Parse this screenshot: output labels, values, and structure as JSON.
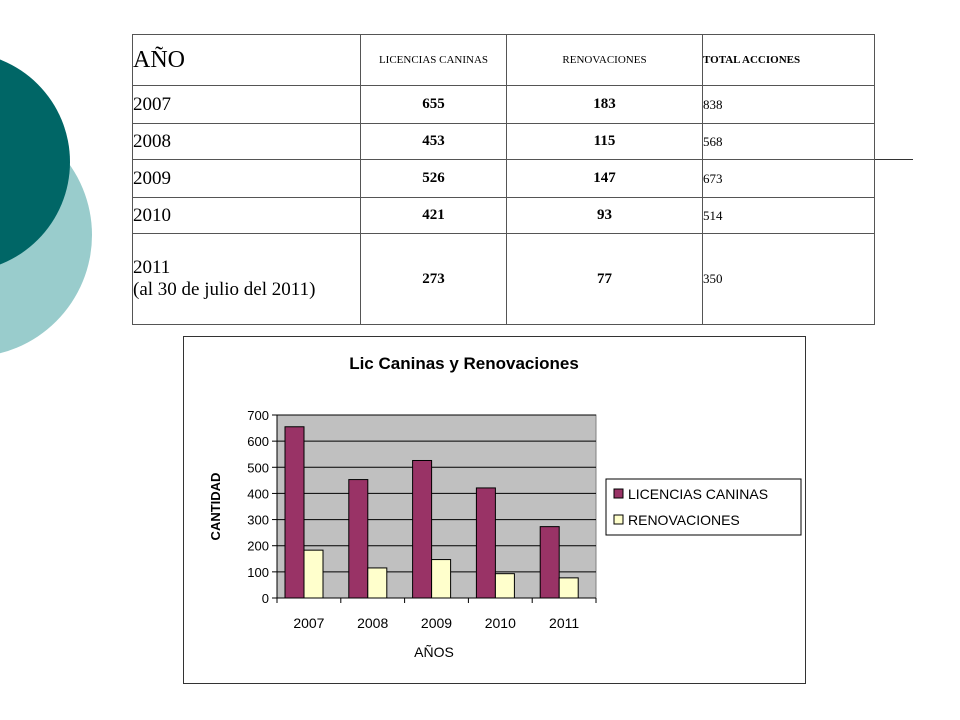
{
  "table": {
    "headers": {
      "year": "AÑO",
      "licencias": "LICENCIAS CANINAS",
      "renovaciones": "RENOVACIONES",
      "total": "TOTAL ACCIONES"
    },
    "rows": [
      {
        "year": "2007",
        "year_note": "",
        "licencias": "655",
        "renovaciones": "183",
        "total": "838"
      },
      {
        "year": "2008",
        "year_note": "",
        "licencias": "453",
        "renovaciones": "115",
        "total": "568"
      },
      {
        "year": "2009",
        "year_note": "",
        "licencias": "526",
        "renovaciones": "147",
        "total": "673"
      },
      {
        "year": "2010",
        "year_note": "",
        "licencias": "421",
        "renovaciones": "93",
        "total": "514"
      },
      {
        "year": "2011",
        "year_note": "(al 30 de julio del 2011)",
        "licencias": "273",
        "renovaciones": "77",
        "total": "350"
      }
    ]
  },
  "chart_data": {
    "type": "bar",
    "title": "Lic Caninas y Renovaciones",
    "xlabel": "AÑOS",
    "ylabel": "CANTIDAD",
    "categories": [
      "2007",
      "2008",
      "2009",
      "2010",
      "2011"
    ],
    "series": [
      {
        "name": "LICENCIAS CANINAS",
        "values": [
          655,
          453,
          526,
          421,
          273
        ],
        "color": "#993366"
      },
      {
        "name": "RENOVACIONES",
        "values": [
          183,
          115,
          147,
          93,
          77
        ],
        "color": "#ffffcc"
      }
    ],
    "ylim": [
      0,
      700
    ],
    "yticks": [
      0,
      100,
      200,
      300,
      400,
      500,
      600,
      700
    ],
    "grid": true,
    "plot_background": "#c0c0c0",
    "legend": "right"
  },
  "colors": {
    "decor_dark": "#006666",
    "decor_light": "#99cccc"
  }
}
